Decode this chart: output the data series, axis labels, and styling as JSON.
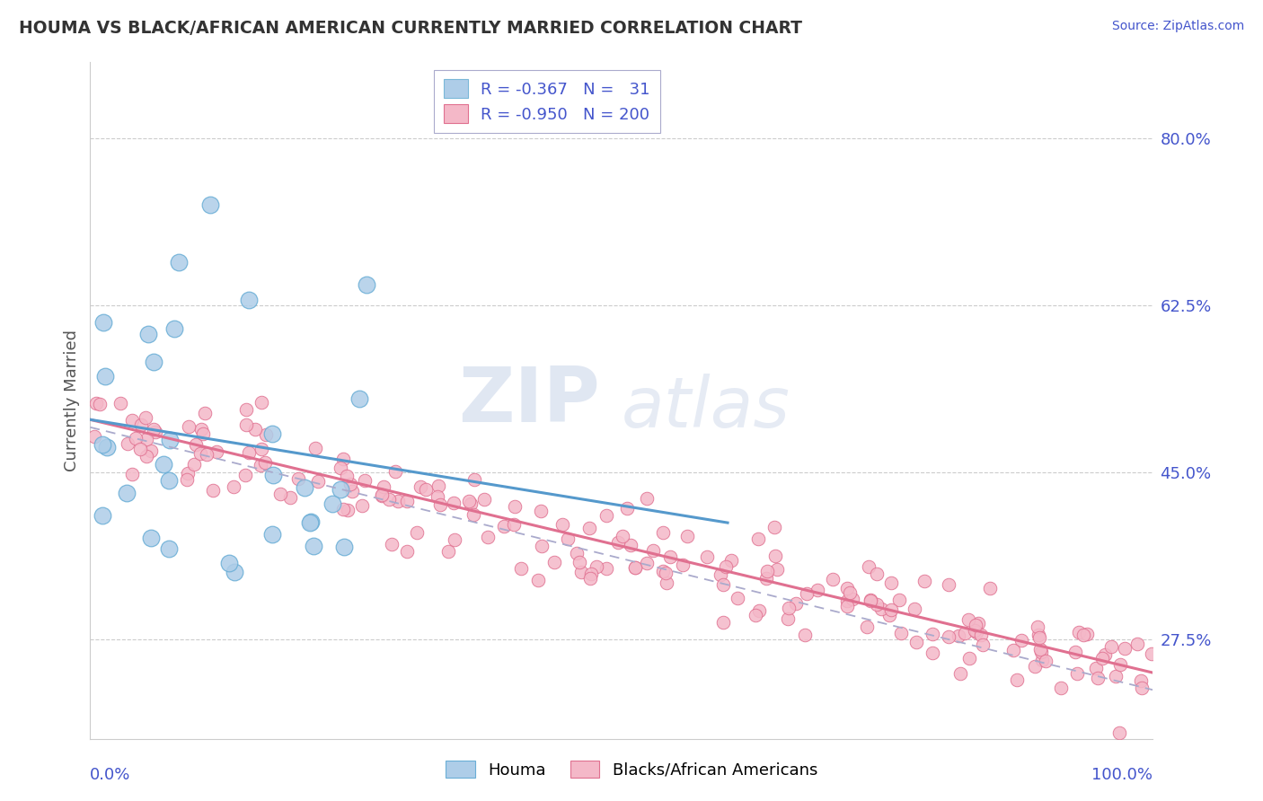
{
  "title": "HOUMA VS BLACK/AFRICAN AMERICAN CURRENTLY MARRIED CORRELATION CHART",
  "source": "Source: ZipAtlas.com",
  "ylabel": "Currently Married",
  "ytick_labels": [
    "27.5%",
    "45.0%",
    "62.5%",
    "80.0%"
  ],
  "ytick_values": [
    0.275,
    0.45,
    0.625,
    0.8
  ],
  "legend_entries": [
    {
      "label_r": "R = -0.367",
      "label_n": "N =   31",
      "color": "#aecde8",
      "edge": "#7ab8d8"
    },
    {
      "label_r": "R = -0.950",
      "label_n": "N = 200",
      "color": "#f4b8c8",
      "edge": "#e07090"
    }
  ],
  "legend_bottom": [
    "Houma",
    "Blacks/African Americans"
  ],
  "houma_color": "#aecde8",
  "houma_edge": "#6aaed6",
  "baa_color": "#f4b8c8",
  "baa_edge": "#e07090",
  "houma_line_color": "#5599cc",
  "baa_line_color": "#e07090",
  "dash_color": "#aaaacc",
  "xlim": [
    0.0,
    1.0
  ],
  "ylim": [
    0.17,
    0.88
  ],
  "title_color": "#333333",
  "tick_color": "#4455cc",
  "grid_color": "#cccccc",
  "background_color": "#ffffff",
  "watermark_zip": "ZIP",
  "watermark_atlas": "atlas"
}
